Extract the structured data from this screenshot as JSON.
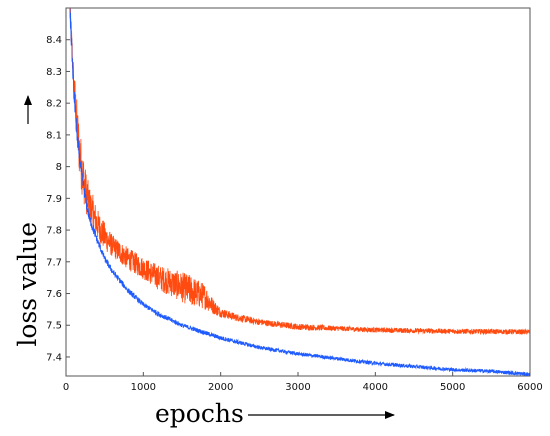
{
  "chart_data": {
    "type": "line",
    "title": "",
    "xlabel": "epochs",
    "ylabel": "loss value",
    "xlim": [
      0,
      6000
    ],
    "ylim": [
      7.34,
      8.5
    ],
    "xticks": [
      0,
      1000,
      2000,
      3000,
      4000,
      5000,
      6000
    ],
    "yticks": [
      7.4,
      7.5,
      7.6,
      7.7,
      7.8,
      7.9,
      8,
      8.1,
      8.2,
      8.3,
      8.4
    ],
    "grid": false,
    "legend": "none",
    "series": [
      {
        "color": "#ff4a10",
        "x": [
          50,
          100,
          150,
          200,
          250,
          300,
          350,
          400,
          500,
          600,
          800,
          1000,
          1200,
          1400,
          1600,
          1800,
          1900,
          2000,
          2200,
          2500,
          3000,
          3500,
          4000,
          4500,
          5000,
          5500,
          6000
        ],
        "y": [
          8.5,
          8.26,
          8.1,
          8.0,
          7.93,
          7.88,
          7.85,
          7.82,
          7.78,
          7.75,
          7.71,
          7.68,
          7.65,
          7.63,
          7.61,
          7.59,
          7.56,
          7.54,
          7.525,
          7.51,
          7.495,
          7.49,
          7.485,
          7.483,
          7.481,
          7.48,
          7.479
        ],
        "noise": [
          0.05,
          0.06,
          0.09,
          0.08,
          0.07,
          0.06,
          0.06,
          0.05,
          0.045,
          0.035,
          0.035,
          0.035,
          0.04,
          0.045,
          0.05,
          0.04,
          0.025,
          0.015,
          0.012,
          0.01,
          0.01,
          0.008,
          0.008,
          0.008,
          0.008,
          0.008,
          0.008
        ]
      },
      {
        "color": "#1f5bff",
        "x": [
          50,
          100,
          150,
          200,
          250,
          300,
          400,
          500,
          600,
          800,
          1000,
          1200,
          1500,
          2000,
          2500,
          3000,
          3500,
          4000,
          4500,
          5000,
          5500,
          6000
        ],
        "y": [
          8.5,
          8.24,
          8.08,
          7.98,
          7.9,
          7.84,
          7.77,
          7.71,
          7.67,
          7.61,
          7.565,
          7.535,
          7.5,
          7.46,
          7.43,
          7.41,
          7.395,
          7.38,
          7.37,
          7.36,
          7.355,
          7.345
        ],
        "noise": [
          0.04,
          0.03,
          0.025,
          0.02,
          0.02,
          0.015,
          0.012,
          0.01,
          0.01,
          0.009,
          0.008,
          0.008,
          0.007,
          0.007,
          0.006,
          0.006,
          0.006,
          0.006,
          0.006,
          0.006,
          0.006,
          0.006
        ]
      }
    ]
  }
}
